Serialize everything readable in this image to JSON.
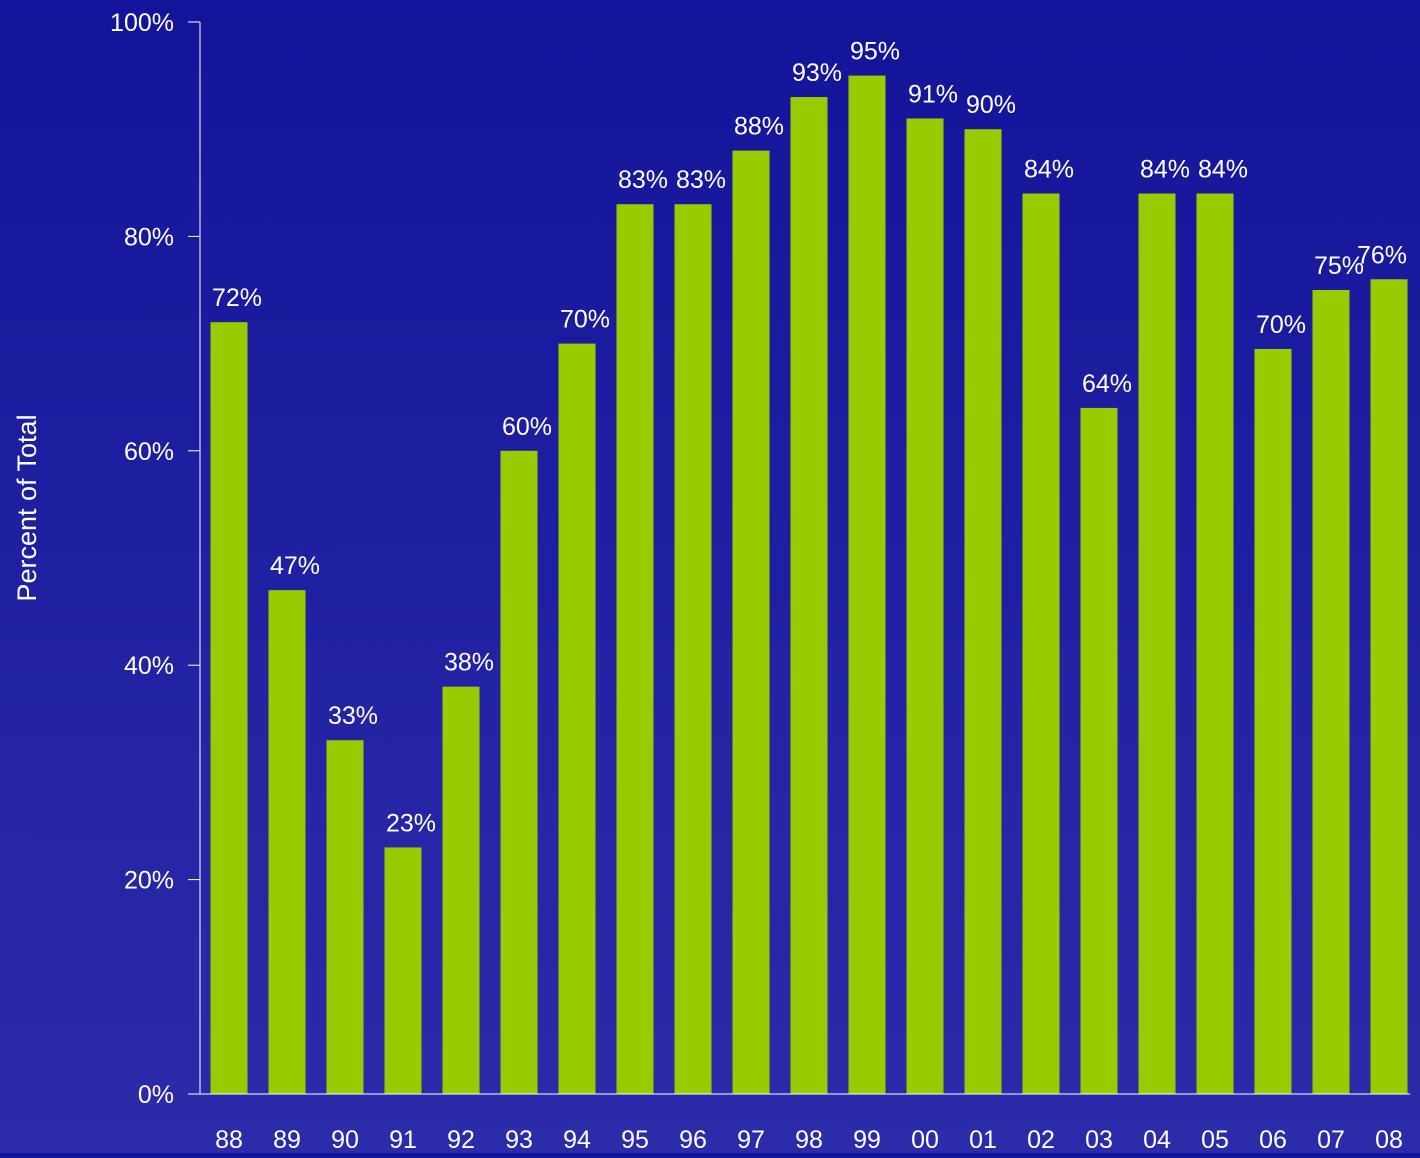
{
  "chart_data": {
    "type": "bar",
    "title": "",
    "xlabel": "",
    "ylabel": "Percent of Total",
    "categories": [
      "88",
      "89",
      "90",
      "91",
      "92",
      "93",
      "94",
      "95",
      "96",
      "97",
      "98",
      "99",
      "00",
      "01",
      "02",
      "03",
      "04",
      "05",
      "06",
      "07",
      "08"
    ],
    "values": [
      72,
      47,
      33,
      23,
      38,
      60,
      70,
      83,
      83,
      88,
      93,
      95,
      91,
      90,
      84,
      64,
      84,
      84,
      69.5,
      75,
      76
    ],
    "data_labels": [
      "72%",
      "47%",
      "33%",
      "23%",
      "38%",
      "60%",
      "70%",
      "83%",
      "83%",
      "88%",
      "93%",
      "95%",
      "91%",
      "90%",
      "84%",
      "64%",
      "84%",
      "84%",
      "70%",
      "75%",
      "76%"
    ],
    "ylim": [
      0,
      100
    ],
    "yticks": [
      0,
      20,
      40,
      60,
      80,
      100
    ],
    "ytick_labels": [
      "0%",
      "20%",
      "40%",
      "60%",
      "80%",
      "100%"
    ],
    "grid": false,
    "legend": "none",
    "colors": {
      "bar": "#99cc00",
      "text": "#ffffff",
      "axis": "#ffffff",
      "background_top": "#14149a",
      "background_bottom": "#2c2caa"
    }
  }
}
